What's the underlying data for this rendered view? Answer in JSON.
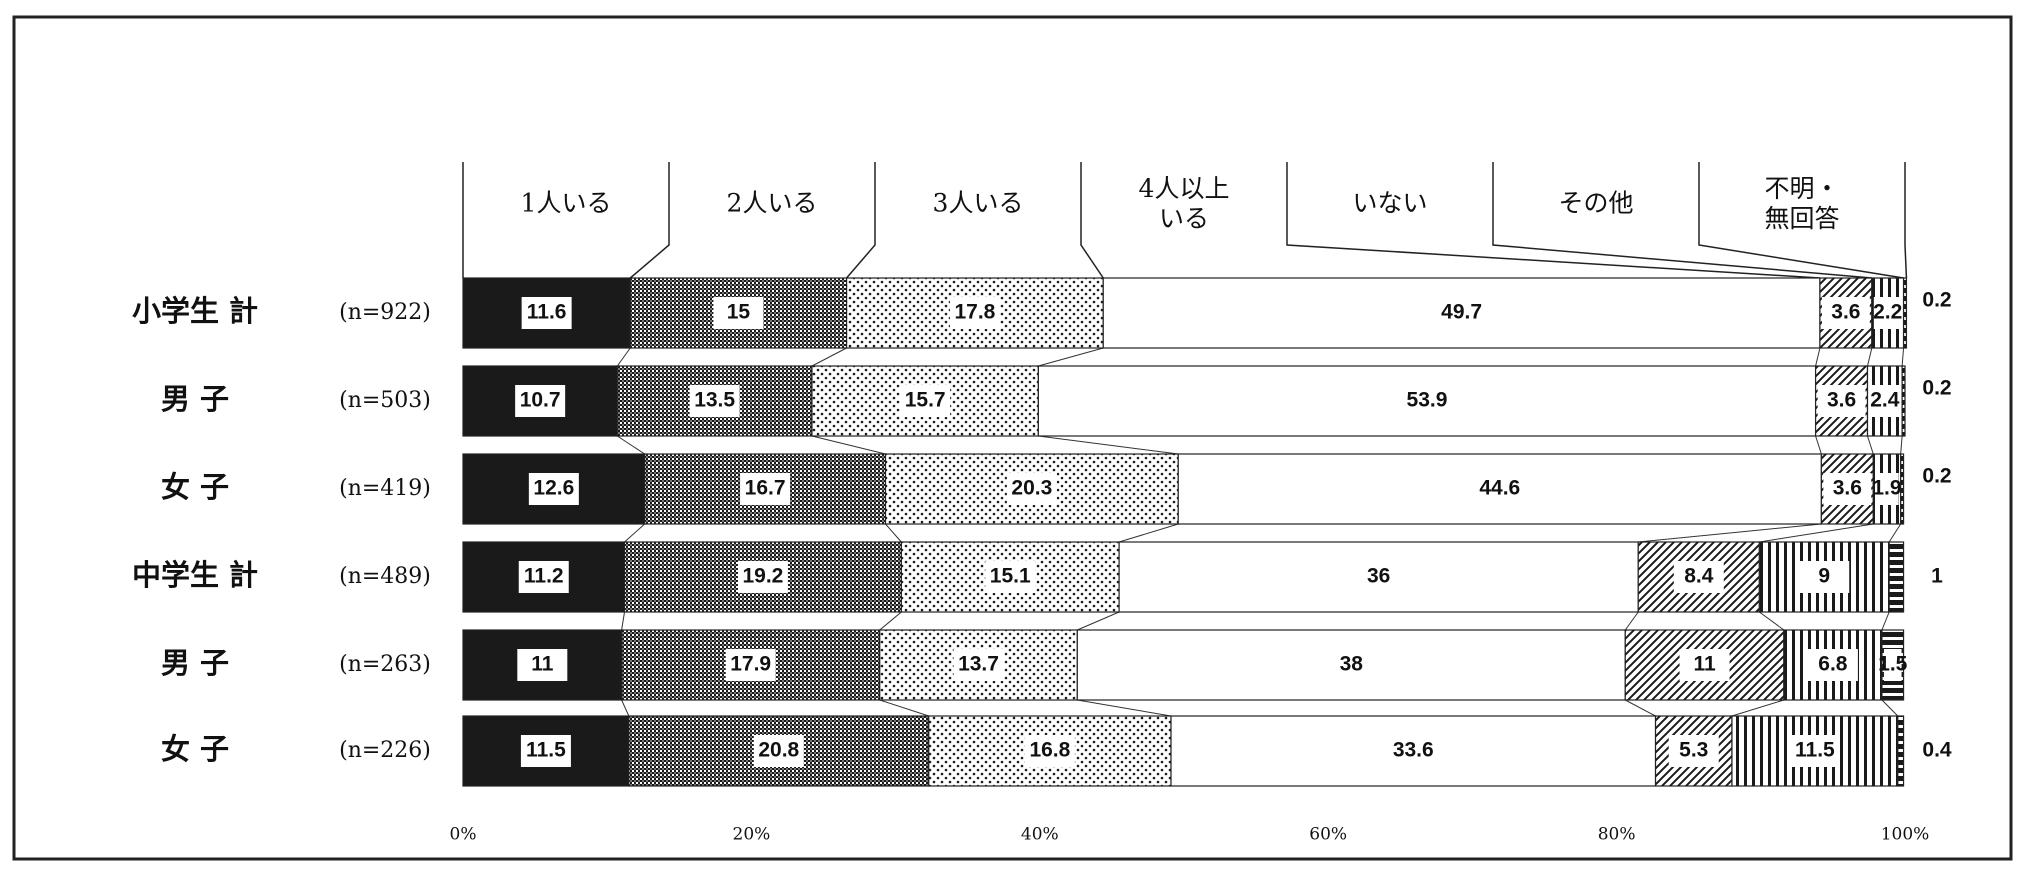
{
  "chart_data": {
    "type": "stacked-bar-100",
    "categories": [
      "小学生 計",
      "男 子",
      "女 子",
      "中学生 計",
      "男 子",
      "女 子"
    ],
    "n_labels": [
      "(n=922)",
      "(n=503)",
      "(n=419)",
      "(n=489)",
      "(n=263)",
      "(n=226)"
    ],
    "series": [
      {
        "name": "1人いる",
        "color": "#1a1a1a",
        "pattern": "solid",
        "values": [
          11.6,
          10.7,
          12.6,
          11.2,
          11.0,
          11.5
        ]
      },
      {
        "name": "2人いる",
        "color": "#1a1a1a",
        "pattern": "checker",
        "values": [
          15.0,
          13.5,
          16.7,
          19.2,
          17.9,
          20.8
        ]
      },
      {
        "name": "3人いる",
        "color": "#1a1a1a",
        "pattern": "dots",
        "values": [
          17.8,
          15.7,
          20.3,
          15.1,
          13.7,
          16.8
        ]
      },
      {
        "name": "4人以上\nいる",
        "color": "#ffffff",
        "pattern": "solid",
        "values": [
          49.7,
          53.9,
          44.6,
          36.0,
          38.0,
          33.6
        ]
      },
      {
        "name": "いない",
        "color": "#1a1a1a",
        "pattern": "diagonal",
        "values": [
          3.6,
          3.6,
          3.6,
          8.4,
          11.0,
          5.3
        ]
      },
      {
        "name": "その他",
        "color": "#1a1a1a",
        "pattern": "vertical",
        "values": [
          2.2,
          2.4,
          1.9,
          9.0,
          6.8,
          11.5
        ]
      },
      {
        "name": "不明・\n無回答",
        "color": "#1a1a1a",
        "pattern": "horizontal",
        "values": [
          0.2,
          0.2,
          0.2,
          1.0,
          1.5,
          0.4
        ]
      }
    ],
    "xlim": [
      0,
      100
    ],
    "xticks": [
      {
        "value": 0,
        "label": "0%"
      },
      {
        "value": 20,
        "label": "20%"
      },
      {
        "value": 40,
        "label": "40%"
      },
      {
        "value": 60,
        "label": "60%"
      },
      {
        "value": 80,
        "label": "80%"
      },
      {
        "value": 100,
        "label": "100%"
      }
    ]
  }
}
